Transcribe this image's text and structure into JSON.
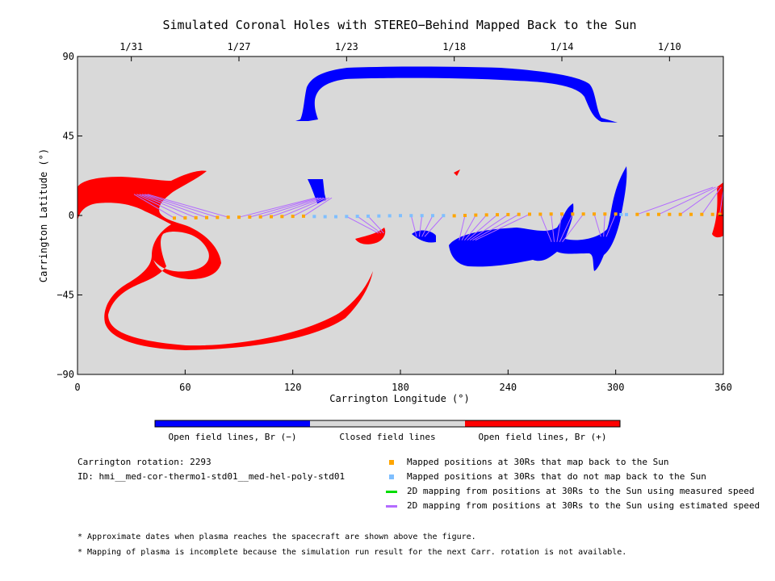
{
  "chart_data": {
    "type": "scatter",
    "title": "Simulated Coronal Holes with STEREO−Behind Mapped Back to the Sun",
    "xlabel": "Carrington Longitude (°)",
    "ylabel": "Carrington Latitude (°)",
    "xlim": [
      0,
      360
    ],
    "ylim": [
      -90,
      90
    ],
    "x_ticks": [
      0,
      60,
      120,
      180,
      240,
      300,
      360
    ],
    "y_ticks": [
      -90,
      -45,
      0,
      45,
      90
    ],
    "top_axis_dates": [
      {
        "label": "1/31",
        "lon": 30
      },
      {
        "label": "1/27",
        "lon": 90
      },
      {
        "label": "1/23",
        "lon": 150
      },
      {
        "label": "1/18",
        "lon": 210
      },
      {
        "label": "1/14",
        "lon": 270
      },
      {
        "label": "1/10",
        "lon": 330
      }
    ],
    "colorbar": [
      {
        "label": "Open field lines, Br (−)",
        "color": "#0000ff"
      },
      {
        "label": "Closed field lines",
        "color": "#d9d9d9"
      },
      {
        "label": "Open field lines, Br (+)",
        "color": "#ff0000"
      }
    ],
    "series": [
      {
        "name": "Mapped positions at 30Rs that map back to the Sun",
        "color": "#ffa500",
        "points": [
          [
            54,
            -1.5
          ],
          [
            60,
            -1.4
          ],
          [
            66,
            -1.3
          ],
          [
            72,
            -1.2
          ],
          [
            78,
            -1.1
          ],
          [
            84,
            -1.0
          ],
          [
            90,
            -1.0
          ],
          [
            96,
            -0.9
          ],
          [
            102,
            -0.8
          ],
          [
            108,
            -0.7
          ],
          [
            114,
            -0.6
          ],
          [
            120,
            -0.5
          ],
          [
            126,
            -0.4
          ],
          [
            210,
            -0.2
          ],
          [
            216,
            0
          ],
          [
            222,
            0.2
          ],
          [
            228,
            0.3
          ],
          [
            234,
            0.4
          ],
          [
            240,
            0.5
          ],
          [
            246,
            0.6
          ],
          [
            252,
            0.7
          ],
          [
            258,
            0.7
          ],
          [
            264,
            0.8
          ],
          [
            270,
            0.8
          ],
          [
            276,
            0.8
          ],
          [
            282,
            0.8
          ],
          [
            288,
            0.8
          ],
          [
            294,
            0.8
          ],
          [
            300,
            0.8
          ],
          [
            312,
            0.6
          ],
          [
            318,
            0.6
          ],
          [
            324,
            0.6
          ],
          [
            330,
            0.6
          ],
          [
            336,
            0.6
          ],
          [
            342,
            0.6
          ],
          [
            348,
            0.6
          ],
          [
            354,
            0.6
          ],
          [
            358,
            0.6
          ]
        ]
      },
      {
        "name": "Mapped positions at 30Rs that do not map back to the Sun",
        "color": "#7fbfff",
        "points": [
          [
            132,
            -0.6
          ],
          [
            138,
            -0.7
          ],
          [
            144,
            -0.7
          ],
          [
            150,
            -0.6
          ],
          [
            156,
            -0.5
          ],
          [
            162,
            -0.4
          ],
          [
            168,
            -0.3
          ],
          [
            174,
            -0.2
          ],
          [
            180,
            -0.1
          ],
          [
            186,
            -0.1
          ],
          [
            192,
            -0.1
          ],
          [
            198,
            -0.1
          ],
          [
            204,
            -0.1
          ],
          [
            303,
            0.5
          ],
          [
            306,
            0.5
          ]
        ]
      },
      {
        "name": "2D mapping from positions at 30Rs to the Sun using measured speed",
        "color": "#00dd00",
        "points": []
      },
      {
        "name": "2D mapping from positions at 30Rs to the Sun using estimated speed",
        "color": "#b36bff",
        "points": []
      }
    ]
  },
  "info": {
    "rotation": "Carrington rotation: 2293",
    "id": "ID: hmi__med-cor-thermo1-std01__med-hel-poly-std01"
  },
  "notes": [
    "* Approximate dates when plasma reaches the spacecraft are shown above the figure.",
    "* Mapping of plasma is incomplete because the simulation run result for the next Carr. rotation is not available."
  ]
}
